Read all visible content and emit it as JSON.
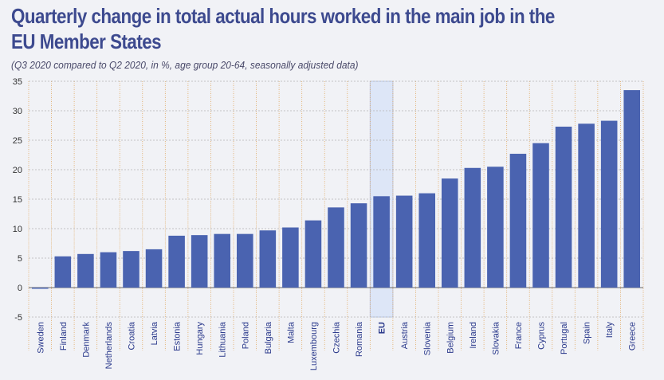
{
  "header": {
    "title": "Quarterly change in total actual hours worked in the main job in the EU Member States",
    "subtitle": "(Q3 2020 compared to Q2 2020, in %, age group 20-64, seasonally adjusted data)"
  },
  "colors": {
    "bar": "#4a63b0",
    "highlight": "#dde6f7",
    "title": "#3d4a8f",
    "background": "#f1f2f6"
  },
  "chart_data": {
    "type": "bar",
    "title": "Quarterly change in total actual hours worked in the main job in the EU Member States",
    "subtitle": "(Q3 2020 compared to Q2 2020, in %, age group 20-64, seasonally adjusted data)",
    "xlabel": "",
    "ylabel": "",
    "ylim": [
      -5,
      35
    ],
    "yticks": [
      -5,
      0,
      5,
      10,
      15,
      20,
      25,
      30,
      35
    ],
    "grid": true,
    "highlight_category": "EU",
    "categories": [
      "Sweden",
      "Finland",
      "Denmark",
      "Netherlands",
      "Croatia",
      "Latvia",
      "Estonia",
      "Hungary",
      "Lithuania",
      "Poland",
      "Bulgaria",
      "Malta",
      "Luxembourg",
      "Czechia",
      "Romania",
      "EU",
      "Austria",
      "Slovenia",
      "Belgium",
      "Ireland",
      "Slovakia",
      "France",
      "Cyprus",
      "Portugal",
      "Spain",
      "Italy",
      "Greece"
    ],
    "values": [
      -0.2,
      5.3,
      5.7,
      6.0,
      6.2,
      6.5,
      8.8,
      8.9,
      9.1,
      9.1,
      9.7,
      10.2,
      11.4,
      13.6,
      14.3,
      15.5,
      15.6,
      16.0,
      18.5,
      20.3,
      20.5,
      22.7,
      24.5,
      27.3,
      27.8,
      28.3,
      33.5
    ]
  }
}
